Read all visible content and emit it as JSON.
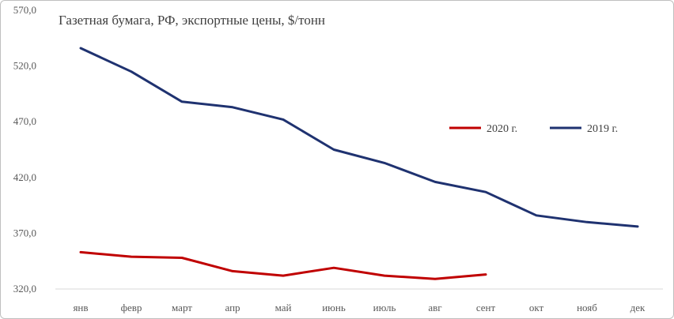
{
  "chart_data": {
    "type": "line",
    "title": "Газетная бумага, РФ, экспортные цены, $/тонн",
    "categories": [
      "янв",
      "февр",
      "март",
      "апр",
      "май",
      "июнь",
      "июль",
      "авг",
      "сент",
      "окт",
      "нояб",
      "дек"
    ],
    "y_ticks": [
      "320,0",
      "370,0",
      "420,0",
      "470,0",
      "520,0",
      "570,0"
    ],
    "ylim": [
      320,
      570
    ],
    "grid": false,
    "legend_position": "right",
    "series": [
      {
        "name": "2020 г.",
        "color": "#c00000",
        "values": [
          353,
          349,
          348,
          336,
          332,
          339,
          332,
          329,
          333,
          null,
          null,
          null
        ]
      },
      {
        "name": "2019 г.",
        "color": "#1f3270",
        "values": [
          536,
          515,
          488,
          483,
          472,
          445,
          433,
          416,
          407,
          386,
          380,
          376
        ]
      }
    ]
  }
}
